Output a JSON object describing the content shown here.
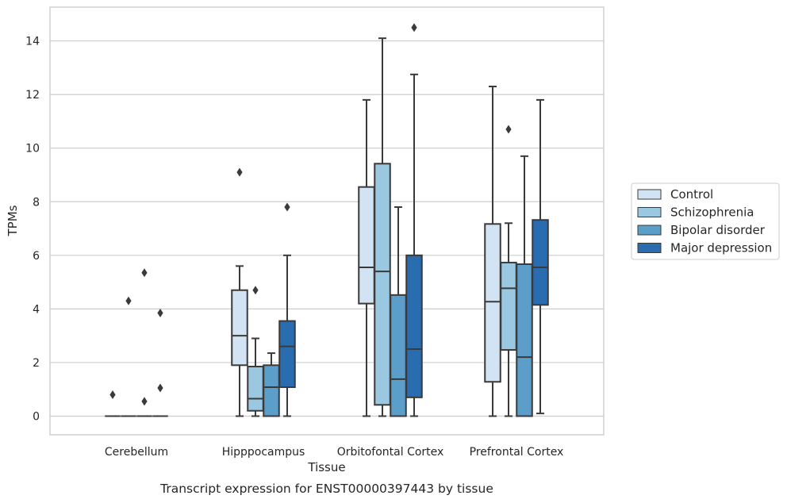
{
  "chart_data": {
    "type": "box",
    "title": "",
    "caption": "Transcript expression for ENST00000397443 by tissue",
    "xlabel": "Tissue",
    "ylabel": "TPMs",
    "ylim": [
      -0.7,
      15.2
    ],
    "yticks": [
      0,
      2,
      4,
      6,
      8,
      10,
      12,
      14
    ],
    "grid": "horizontal",
    "legend_position": "right",
    "categories": [
      "Cerebellum",
      "Hipppocampus",
      "Orbitofontal Cortex",
      "Prefrontal Cortex"
    ],
    "series": [
      {
        "name": "Control",
        "color": "#d2e3f3",
        "boxes": [
          {
            "min": 0,
            "q1": 0,
            "median": 0,
            "q3": 0,
            "max": 0,
            "outliers": [
              0.8
            ]
          },
          {
            "min": 0,
            "q1": 1.9,
            "median": 3.0,
            "q3": 4.7,
            "max": 5.6,
            "outliers": [
              9.1
            ]
          },
          {
            "min": 0,
            "q1": 4.2,
            "median": 5.55,
            "q3": 8.55,
            "max": 11.8,
            "outliers": []
          },
          {
            "min": 0,
            "q1": 1.28,
            "median": 4.27,
            "q3": 7.17,
            "max": 12.3,
            "outliers": []
          }
        ]
      },
      {
        "name": "Schizophrenia",
        "color": "#9ac8e0",
        "boxes": [
          {
            "min": 0,
            "q1": 0,
            "median": 0,
            "q3": 0,
            "max": 0,
            "outliers": [
              4.3
            ]
          },
          {
            "min": 0,
            "q1": 0.2,
            "median": 0.65,
            "q3": 1.85,
            "max": 2.9,
            "outliers": [
              4.7
            ]
          },
          {
            "min": 0,
            "q1": 0.42,
            "median": 5.4,
            "q3": 9.42,
            "max": 14.1,
            "outliers": []
          },
          {
            "min": 0,
            "q1": 2.47,
            "median": 4.77,
            "q3": 5.73,
            "max": 7.2,
            "outliers": [
              10.7
            ]
          }
        ]
      },
      {
        "name": "Bipolar disorder",
        "color": "#5a9ec9",
        "boxes": [
          {
            "min": 0,
            "q1": 0,
            "median": 0,
            "q3": 0,
            "max": 0,
            "outliers": [
              0.55,
              5.35
            ]
          },
          {
            "min": 0,
            "q1": 0,
            "median": 1.08,
            "q3": 1.9,
            "max": 2.35,
            "outliers": []
          },
          {
            "min": 0,
            "q1": 0,
            "median": 1.38,
            "q3": 4.52,
            "max": 7.8,
            "outliers": []
          },
          {
            "min": 0,
            "q1": 0,
            "median": 2.2,
            "q3": 5.67,
            "max": 9.7,
            "outliers": []
          }
        ]
      },
      {
        "name": "Major depression",
        "color": "#2a6cb0",
        "boxes": [
          {
            "min": 0,
            "q1": 0,
            "median": 0,
            "q3": 0,
            "max": 0,
            "outliers": [
              1.05,
              3.85
            ]
          },
          {
            "min": 0,
            "q1": 1.08,
            "median": 2.6,
            "q3": 3.55,
            "max": 6.0,
            "outliers": [
              7.8
            ]
          },
          {
            "min": 0,
            "q1": 0.7,
            "median": 2.5,
            "q3": 6.0,
            "max": 12.75,
            "outliers": [
              14.5
            ]
          },
          {
            "min": 0.1,
            "q1": 4.15,
            "median": 5.55,
            "q3": 7.32,
            "max": 11.8,
            "outliers": []
          }
        ]
      }
    ]
  }
}
